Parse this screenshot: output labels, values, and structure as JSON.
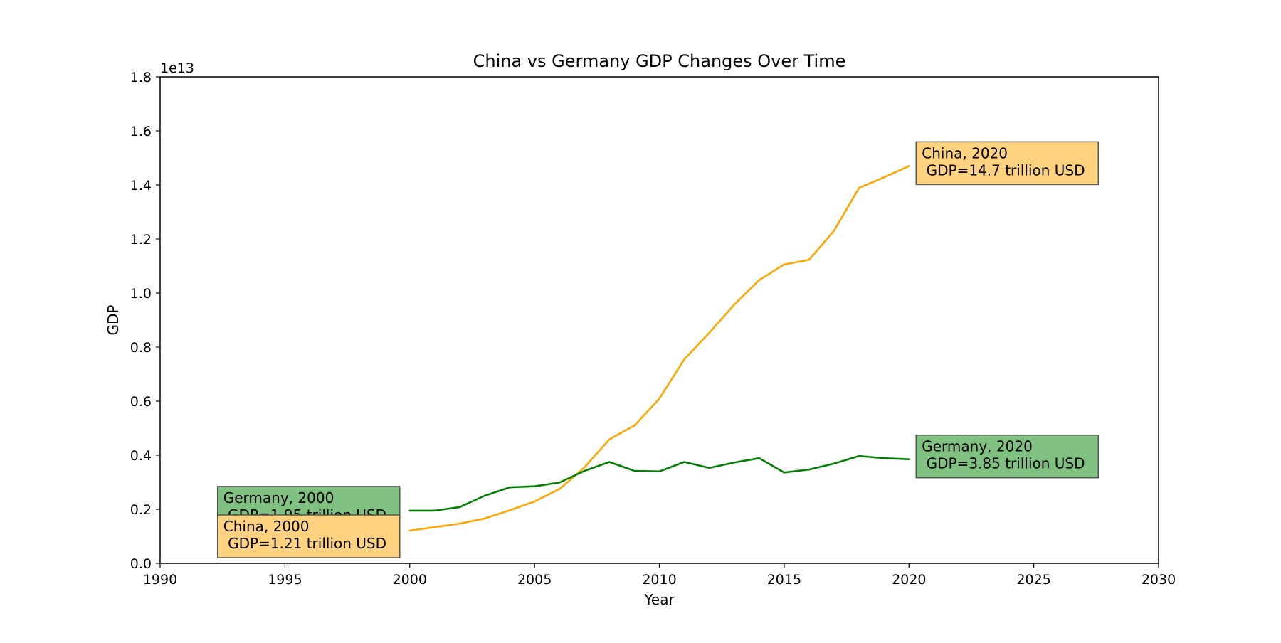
{
  "chart_data": {
    "type": "line",
    "title": "China vs Germany GDP Changes Over Time",
    "xlabel": "Year",
    "ylabel": "GDP",
    "y_offset_label": "1e13",
    "y_scale_factor": 10000000000000,
    "xlim": [
      1990,
      2030
    ],
    "ylim": [
      0,
      18000000000000
    ],
    "x_ticks": [
      1990,
      1995,
      2000,
      2005,
      2010,
      2015,
      2020,
      2025,
      2030
    ],
    "x_tick_labels": [
      "1990",
      "1995",
      "2000",
      "2005",
      "2010",
      "2015",
      "2020",
      "2025",
      "2030"
    ],
    "y_ticks": [
      0,
      2000000000000,
      4000000000000,
      6000000000000,
      8000000000000,
      10000000000000,
      12000000000000,
      14000000000000,
      16000000000000,
      18000000000000
    ],
    "y_tick_labels": [
      "0.0",
      "0.2",
      "0.4",
      "0.6",
      "0.8",
      "1.0",
      "1.2",
      "1.4",
      "1.6",
      "1.8"
    ],
    "grid": false,
    "x": [
      2000,
      2001,
      2002,
      2003,
      2004,
      2005,
      2006,
      2007,
      2008,
      2009,
      2010,
      2011,
      2012,
      2013,
      2014,
      2015,
      2016,
      2017,
      2018,
      2019,
      2020
    ],
    "series": [
      {
        "name": "China",
        "color": "#ffa500",
        "values": [
          1210000000000,
          1340000000000,
          1470000000000,
          1660000000000,
          1960000000000,
          2290000000000,
          2750000000000,
          3550000000000,
          4590000000000,
          5100000000000,
          6090000000000,
          7550000000000,
          8530000000000,
          9570000000000,
          10480000000000,
          11060000000000,
          11230000000000,
          12310000000000,
          13890000000000,
          14280000000000,
          14700000000000
        ]
      },
      {
        "name": "Germany",
        "color": "#008000",
        "values": [
          1950000000000,
          1950000000000,
          2080000000000,
          2500000000000,
          2810000000000,
          2850000000000,
          2990000000000,
          3420000000000,
          3750000000000,
          3420000000000,
          3400000000000,
          3750000000000,
          3530000000000,
          3730000000000,
          3890000000000,
          3360000000000,
          3470000000000,
          3690000000000,
          3970000000000,
          3890000000000,
          3850000000000
        ]
      }
    ],
    "annotations": [
      {
        "series": "Germany",
        "x": 2000,
        "y": 1950000000000,
        "lines": [
          "Germany, 2000",
          " GDP=1.95 trillion USD"
        ],
        "side": "left",
        "fill": "#80c080"
      },
      {
        "series": "China",
        "x": 2000,
        "y": 1210000000000,
        "lines": [
          "China, 2000",
          " GDP=1.21 trillion USD"
        ],
        "side": "left",
        "fill": "#ffd27f"
      },
      {
        "series": "China",
        "x": 2020,
        "y": 14700000000000,
        "lines": [
          "China, 2020",
          " GDP=14.7 trillion USD"
        ],
        "side": "right",
        "fill": "#ffd27f"
      },
      {
        "series": "Germany",
        "x": 2020,
        "y": 3850000000000,
        "lines": [
          "Germany, 2020",
          " GDP=3.85 trillion USD"
        ],
        "side": "right",
        "fill": "#80c080"
      }
    ]
  }
}
